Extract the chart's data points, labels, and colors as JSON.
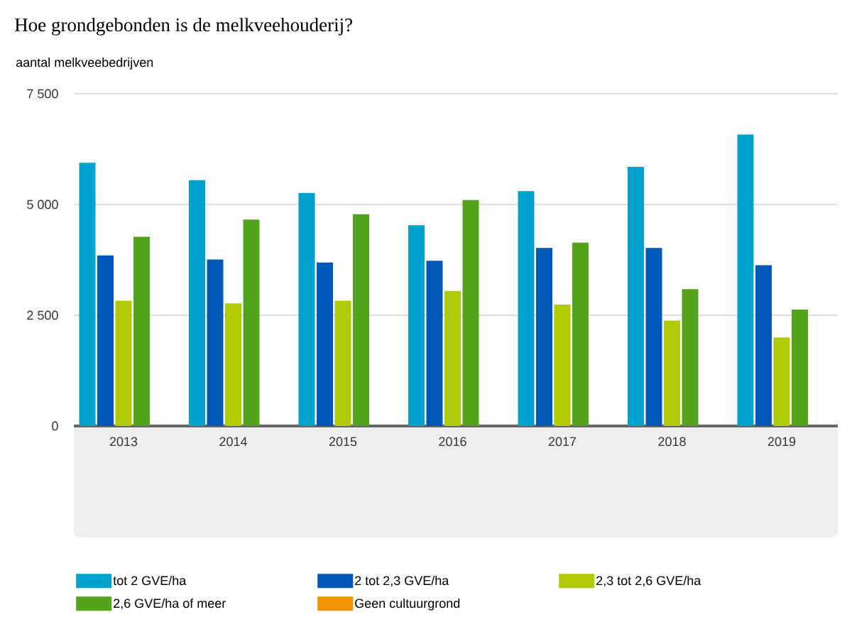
{
  "chart_data": {
    "type": "bar",
    "title": "Hoe grondgebonden is de melkveehouderij?",
    "ylabel": "aantal melkveebedrijven",
    "categories": [
      "2013",
      "2014",
      "2015",
      "2016",
      "2017",
      "2018",
      "2019"
    ],
    "series": [
      {
        "name": "tot 2 GVE/ha",
        "color": "#00a1cd",
        "values": [
          5940,
          5550,
          5260,
          4530,
          5300,
          5850,
          6580
        ]
      },
      {
        "name": "2 tot 2,3 GVE/ha",
        "color": "#0058b8",
        "values": [
          3850,
          3760,
          3690,
          3730,
          4020,
          4020,
          3630
        ]
      },
      {
        "name": "2,3 tot 2,6 GVE/ha",
        "color": "#afcb05",
        "values": [
          2830,
          2770,
          2830,
          3050,
          2740,
          2380,
          2000
        ]
      },
      {
        "name": "2,6 GVE/ha of meer",
        "color": "#53a31d",
        "values": [
          4270,
          4660,
          4780,
          5100,
          4140,
          3090,
          2630
        ]
      },
      {
        "name": "Geen cultuurgrond",
        "color": "#f39200",
        "values": [
          null,
          null,
          null,
          null,
          null,
          null,
          null
        ]
      }
    ],
    "ylim": [
      0,
      7500
    ],
    "yticks": [
      {
        "value": 0,
        "label": "0"
      },
      {
        "value": 2500,
        "label": "2 500"
      },
      {
        "value": 5000,
        "label": "5 000"
      },
      {
        "value": 7500,
        "label": "7 500"
      }
    ],
    "grid": "y",
    "legend": "bottom"
  }
}
